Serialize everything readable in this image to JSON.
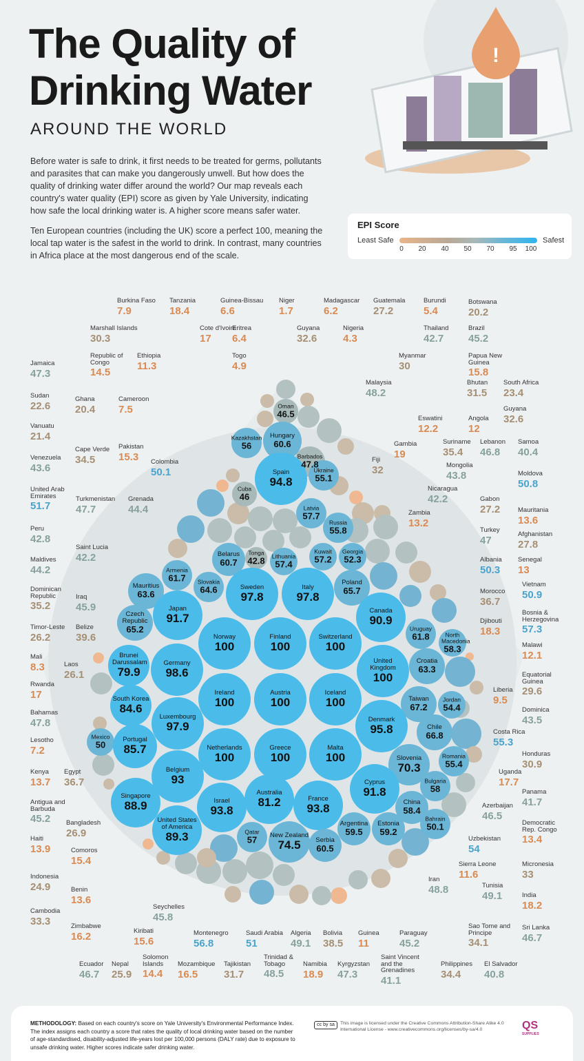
{
  "header": {
    "title_line1": "The Quality of",
    "title_line2": "Drinking Water",
    "subtitle": "AROUND THE WORLD",
    "intro1": "Before water is safe to drink, it first needs to be treated for germs, pollutants and parasites that can make you dangerously unwell. But how does the quality of drinking water differ around the world? Our map reveals each country's water quality (EPI) score as given by Yale University, indicating how safe the local drinking water is. A higher score means safer water.",
    "intro2": "Ten European countries (including the UK) score a perfect 100, meaning the local tap water is the safest in the world to drink. In contrast, many countries in Africa place at the most dangerous end of the scale."
  },
  "legend": {
    "title": "EPI Score",
    "least": "Least Safe",
    "safest": "Safest",
    "ticks": [
      "0",
      "20",
      "40",
      "50",
      "70",
      "95",
      "100"
    ],
    "colors": {
      "low": "#e9b48a",
      "mid": "#b9a996",
      "gray": "#a7b9b8",
      "blue": "#6bb6d6",
      "bright": "#4bbbe9"
    }
  },
  "chart_data": {
    "type": "bubble",
    "title": "The Quality of Drinking Water",
    "value_label": "EPI Score",
    "range": [
      0,
      100
    ],
    "labeled_bubbles": [
      {
        "name": "Oman",
        "score": 46.5
      },
      {
        "name": "Kazakhstan",
        "score": 56
      },
      {
        "name": "Hungary",
        "score": 60.6
      },
      {
        "name": "Barbados",
        "score": 47.8
      },
      {
        "name": "Spain",
        "score": 94.8
      },
      {
        "name": "Ukraine",
        "score": 55.1
      },
      {
        "name": "Cuba",
        "score": 46
      },
      {
        "name": "Latvia",
        "score": 57.7
      },
      {
        "name": "Russia",
        "score": 55.8
      },
      {
        "name": "Belarus",
        "score": 60.7
      },
      {
        "name": "Tonga",
        "score": 42.8
      },
      {
        "name": "Lithuania",
        "score": 57.4
      },
      {
        "name": "Kuwait",
        "score": 57.2
      },
      {
        "name": "Georgia",
        "score": 52.3
      },
      {
        "name": "Armenia",
        "score": 61.7
      },
      {
        "name": "Mauritius",
        "score": 63.6
      },
      {
        "name": "Slovakia",
        "score": 64.6
      },
      {
        "name": "Sweden",
        "score": 97.8
      },
      {
        "name": "Italy",
        "score": 97.8
      },
      {
        "name": "Poland",
        "score": 65.7
      },
      {
        "name": "Japan",
        "score": 91.7
      },
      {
        "name": "Czech Republic",
        "score": 65.2
      },
      {
        "name": "Canada",
        "score": 90.9
      },
      {
        "name": "Uruguay",
        "score": 61.8
      },
      {
        "name": "North Macedonia",
        "score": 58.3
      },
      {
        "name": "Norway",
        "score": 100
      },
      {
        "name": "Finland",
        "score": 100
      },
      {
        "name": "Switzerland",
        "score": 100
      },
      {
        "name": "Brunei Darussalam",
        "score": 79.9
      },
      {
        "name": "Germany",
        "score": 98.6
      },
      {
        "name": "Croatia",
        "score": 63.3
      },
      {
        "name": "United Kingdom",
        "score": 100
      },
      {
        "name": "Ireland",
        "score": 100
      },
      {
        "name": "Austria",
        "score": 100
      },
      {
        "name": "Iceland",
        "score": 100
      },
      {
        "name": "South Korea",
        "score": 84.6
      },
      {
        "name": "Taiwan",
        "score": 67.2
      },
      {
        "name": "Jordan",
        "score": 54.4
      },
      {
        "name": "Luxembourg",
        "score": 97.9
      },
      {
        "name": "Denmark",
        "score": 95.8
      },
      {
        "name": "Chile",
        "score": 66.8
      },
      {
        "name": "Mexico",
        "score": 50
      },
      {
        "name": "Portugal",
        "score": 85.7
      },
      {
        "name": "Netherlands",
        "score": 100
      },
      {
        "name": "Greece",
        "score": 100
      },
      {
        "name": "Malta",
        "score": 100
      },
      {
        "name": "Slovenia",
        "score": 70.3
      },
      {
        "name": "Romania",
        "score": 55.4
      },
      {
        "name": "Belgium",
        "score": 93
      },
      {
        "name": "Cyprus",
        "score": 91.8
      },
      {
        "name": "Bulgaria",
        "score": 58
      },
      {
        "name": "Singapore",
        "score": 88.9
      },
      {
        "name": "Israel",
        "score": 93.8
      },
      {
        "name": "Australia",
        "score": 81.2
      },
      {
        "name": "France",
        "score": 93.8
      },
      {
        "name": "China",
        "score": 58.4
      },
      {
        "name": "United States of America",
        "score": 89.3
      },
      {
        "name": "Argentina",
        "score": 59.5
      },
      {
        "name": "Estonia",
        "score": 59.2
      },
      {
        "name": "Bahrain",
        "score": 50.1
      },
      {
        "name": "Qatar",
        "score": 57
      },
      {
        "name": "New Zealand",
        "score": 74.5
      },
      {
        "name": "Serbia",
        "score": 60.5
      }
    ],
    "callouts": [
      {
        "name": "Burkina Faso",
        "score": 7.9
      },
      {
        "name": "Tanzania",
        "score": 18.4
      },
      {
        "name": "Guinea-Bissau",
        "score": 6.6
      },
      {
        "name": "Niger",
        "score": 1.7
      },
      {
        "name": "Madagascar",
        "score": 6.2
      },
      {
        "name": "Guatemala",
        "score": 27.2
      },
      {
        "name": "Burundi",
        "score": 5.4
      },
      {
        "name": "Botswana",
        "score": 20.2
      },
      {
        "name": "Marshall Islands",
        "score": 30.3
      },
      {
        "name": "Cote d'Ivoire",
        "score": 17
      },
      {
        "name": "Eritrea",
        "score": 6.4
      },
      {
        "name": "Guyana",
        "score": 32.6
      },
      {
        "name": "Nigeria",
        "score": 4.3
      },
      {
        "name": "Thailand",
        "score": 42.7
      },
      {
        "name": "Brazil",
        "score": 45.2
      },
      {
        "name": "Republic of Congo",
        "score": 14.5
      },
      {
        "name": "Ethiopia",
        "score": 11.3
      },
      {
        "name": "Togo",
        "score": 4.9
      },
      {
        "name": "Myanmar",
        "score": 30
      },
      {
        "name": "Papua New Guinea",
        "score": 15.8
      },
      {
        "name": "Jamaica",
        "score": 47.3
      },
      {
        "name": "Malaysia",
        "score": 48.2
      },
      {
        "name": "Bhutan",
        "score": 31.5
      },
      {
        "name": "South Africa",
        "score": 23.4
      },
      {
        "name": "Sudan",
        "score": 22.6
      },
      {
        "name": "Ghana",
        "score": 20.4
      },
      {
        "name": "Cameroon",
        "score": 7.5
      },
      {
        "name": "Guyana",
        "score": 32.6
      },
      {
        "name": "Eswatini",
        "score": 12.2
      },
      {
        "name": "Angola",
        "score": 12
      },
      {
        "name": "Vanuatu",
        "score": 21.4
      },
      {
        "name": "Cape Verde",
        "score": 34.5
      },
      {
        "name": "Pakistan",
        "score": 15.3
      },
      {
        "name": "Colombia",
        "score": 50.1
      },
      {
        "name": "Gambia",
        "score": 19
      },
      {
        "name": "Suriname",
        "score": 35.4
      },
      {
        "name": "Lebanon",
        "score": 46.8
      },
      {
        "name": "Samoa",
        "score": 40.4
      },
      {
        "name": "Venezuela",
        "score": 43.6
      },
      {
        "name": "Fiji",
        "score": 32
      },
      {
        "name": "Mongolia",
        "score": 43.8
      },
      {
        "name": "Moldova",
        "score": 50.8
      },
      {
        "name": "United Arab Emirates",
        "score": 51.7
      },
      {
        "name": "Turkmenistan",
        "score": 47.7
      },
      {
        "name": "Grenada",
        "score": 44.4
      },
      {
        "name": "Nicaragua",
        "score": 42.2
      },
      {
        "name": "Zambia",
        "score": 13.2
      },
      {
        "name": "Gabon",
        "score": 27.2
      },
      {
        "name": "Mauritania",
        "score": 13.6
      },
      {
        "name": "Peru",
        "score": 42.8
      },
      {
        "name": "Turkey",
        "score": 47
      },
      {
        "name": "Afghanistan",
        "score": 27.8
      },
      {
        "name": "Saint Lucia",
        "score": 42.2
      },
      {
        "name": "Maldives",
        "score": 44.2
      },
      {
        "name": "Albania",
        "score": 50.3
      },
      {
        "name": "Senegal",
        "score": 13
      },
      {
        "name": "Dominican Republic",
        "score": 35.2
      },
      {
        "name": "Iraq",
        "score": 45.9
      },
      {
        "name": "Morocco",
        "score": 36.7
      },
      {
        "name": "Vietnam",
        "score": 50.9
      },
      {
        "name": "Timor-Leste",
        "score": 26.2
      },
      {
        "name": "Belize",
        "score": 39.6
      },
      {
        "name": "Djibouti",
        "score": 18.3
      },
      {
        "name": "Bosnia & Herzegovina",
        "score": 57.3
      },
      {
        "name": "Mali",
        "score": 8.3
      },
      {
        "name": "Laos",
        "score": 26.1
      },
      {
        "name": "Malawi",
        "score": 12.1
      },
      {
        "name": "Rwanda",
        "score": 17
      },
      {
        "name": "Equatorial Guinea",
        "score": 29.6
      },
      {
        "name": "Liberia",
        "score": 9.5
      },
      {
        "name": "Bahamas",
        "score": 47.8
      },
      {
        "name": "Dominica",
        "score": 43.5
      },
      {
        "name": "Lesotho",
        "score": 7.2
      },
      {
        "name": "Costa Rica",
        "score": 55.3
      },
      {
        "name": "Kenya",
        "score": 13.7
      },
      {
        "name": "Egypt",
        "score": 36.7
      },
      {
        "name": "Honduras",
        "score": 30.9
      },
      {
        "name": "Uganda",
        "score": 17.7
      },
      {
        "name": "Antigua and Barbuda",
        "score": 45.2
      },
      {
        "name": "Panama",
        "score": 41.7
      },
      {
        "name": "Azerbaijan",
        "score": 46.5
      },
      {
        "name": "Bangladesh",
        "score": 26.9
      },
      {
        "name": "Democratic Rep. Congo",
        "score": 13.4
      },
      {
        "name": "Haiti",
        "score": 13.9
      },
      {
        "name": "Comoros",
        "score": 15.4
      },
      {
        "name": "Uzbekistan",
        "score": 54
      },
      {
        "name": "Micronesia",
        "score": 33
      },
      {
        "name": "Indonesia",
        "score": 24.9
      },
      {
        "name": "Sierra Leone",
        "score": 11.6
      },
      {
        "name": "Benin",
        "score": 13.6
      },
      {
        "name": "Iran",
        "score": 48.8
      },
      {
        "name": "Tunisia",
        "score": 49.1
      },
      {
        "name": "India",
        "score": 18.2
      },
      {
        "name": "Cambodia",
        "score": 33.3
      },
      {
        "name": "Seychelles",
        "score": 45.8
      },
      {
        "name": "Zimbabwe",
        "score": 16.2
      },
      {
        "name": "Kiribati",
        "score": 15.6
      },
      {
        "name": "Sao Tome and Principe",
        "score": 34.1
      },
      {
        "name": "Sri Lanka",
        "score": 46.7
      },
      {
        "name": "Montenegro",
        "score": 56.8
      },
      {
        "name": "Saudi Arabia",
        "score": 51
      },
      {
        "name": "Algeria",
        "score": 49.1
      },
      {
        "name": "Bolivia",
        "score": 38.5
      },
      {
        "name": "Guinea",
        "score": 11
      },
      {
        "name": "Paraguay",
        "score": 45.2
      },
      {
        "name": "Ecuador",
        "score": 46.7
      },
      {
        "name": "Nepal",
        "score": 25.9
      },
      {
        "name": "Solomon Islands",
        "score": 14.4
      },
      {
        "name": "Mozambique",
        "score": 16.5
      },
      {
        "name": "Tajikistan",
        "score": 31.7
      },
      {
        "name": "Trinidad & Tobago",
        "score": 48.5
      },
      {
        "name": "Namibia",
        "score": 18.9
      },
      {
        "name": "Kyrgyzstan",
        "score": 47.3
      },
      {
        "name": "Saint Vincent and the Grenadines",
        "score": 41.1
      },
      {
        "name": "Philippines",
        "score": 34.4
      },
      {
        "name": "El Salvador",
        "score": 40.8
      }
    ]
  },
  "footer": {
    "methodology_label": "METHODOLOGY:",
    "methodology": " Based on each country's score on Yale University's Environmental Performance Index. The index assigns each country a score that rates the quality of local drinking water based on the number of age-standardised, disability-adjusted life-years lost per 100,000 persons (DALY rate) due to exposure to unsafe drinking water. Higher scores indicate safer drinking water.",
    "license": "This image is licensed under the Creative Commons Attribution-Share Alike 4.0 International License - www.creativecommons.org/licenses/by-sa/4.0",
    "cc_badge": "cc by sa",
    "logo": "QS",
    "logo_sub": "SUPPLIES"
  }
}
